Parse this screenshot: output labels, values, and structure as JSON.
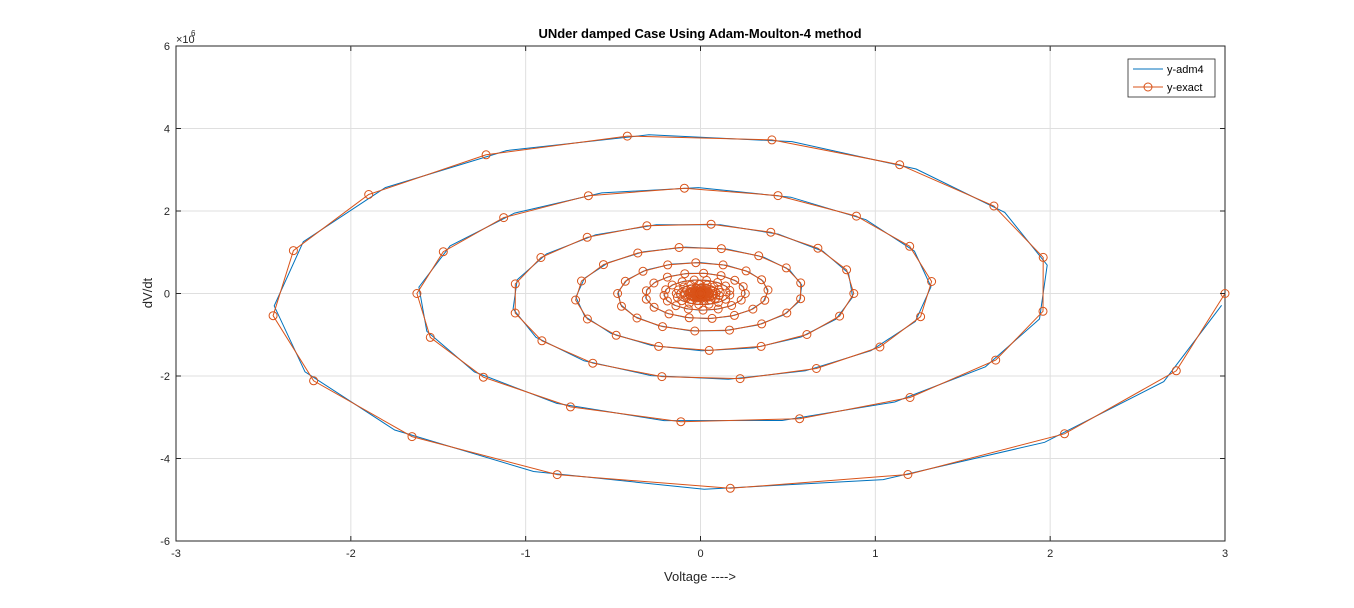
{
  "chart_data": {
    "type": "line",
    "title": "UNder damped Case Using Adam-Moulton-4 method",
    "xlabel": "Voltage ---->",
    "ylabel": "dV/dt",
    "xlim": [
      -3,
      3
    ],
    "ylim": [
      -6,
      6
    ],
    "y_exponent_label": "×10",
    "y_exponent_power": "6",
    "xticks": [
      -3,
      -2,
      -1,
      0,
      1,
      2,
      3
    ],
    "xtick_labels": [
      "-3",
      "-2",
      "-1",
      "0",
      "1",
      "2",
      "3"
    ],
    "yticks": [
      -6,
      -4,
      -2,
      0,
      2,
      4,
      6
    ],
    "ytick_labels": [
      "-6",
      "-4",
      "-2",
      "0",
      "2",
      "4",
      "6"
    ],
    "grid": true,
    "legend_position": "top-right",
    "series": [
      {
        "name": "y-adm4",
        "color": "#0072BD",
        "marker": "none",
        "style": "solid-line"
      },
      {
        "name": "y-exact",
        "color": "#D95319",
        "marker": "circle",
        "style": "solid-line"
      }
    ],
    "trajectory": {
      "x0": 3.0,
      "y_amplitude": 5.22,
      "decay_per_step": 0.9757,
      "angle_step_deg": 21.6,
      "steps": 380,
      "x_scale": 1.0,
      "y_scale": 1.0
    }
  }
}
